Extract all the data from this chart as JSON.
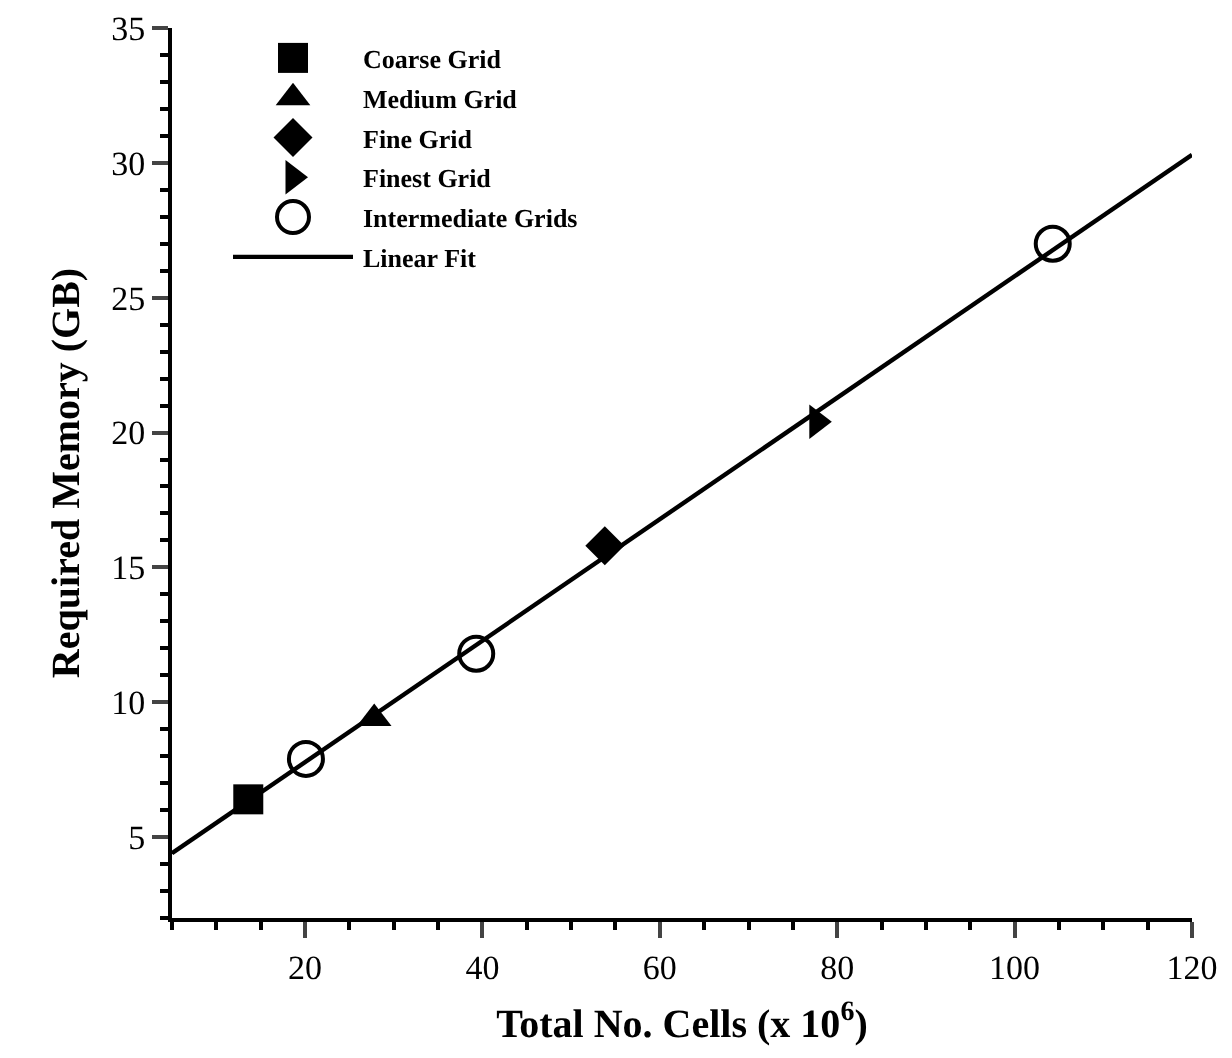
{
  "chart_data": {
    "type": "scatter",
    "xlabel": "Total No. Cells (x 10$^{6}$)",
    "ylabel": "Required Memory (GB)",
    "xlim": [
      5,
      120
    ],
    "xticks": [
      20,
      40,
      60,
      80,
      100,
      120
    ],
    "ylim": [
      2,
      35
    ],
    "yticks": [
      5,
      10,
      15,
      20,
      25,
      30,
      35
    ],
    "grid": false,
    "legend": "top left",
    "series": [
      {
        "name": "Coarse Grid",
        "color": "#000000",
        "marker": "square",
        "x": [
          13.6
        ],
        "values": [
          6.4
        ]
      },
      {
        "name": "Medium Grid",
        "color": "#000000",
        "marker": "triangle",
        "x": [
          27.8
        ],
        "values": [
          9.4
        ]
      },
      {
        "name": "Fine Grid",
        "color": "#000000",
        "marker": "diamond",
        "x": [
          53.8
        ],
        "values": [
          15.8
        ]
      },
      {
        "name": "Finest Grid",
        "color": "#000000",
        "marker": "triangle-right",
        "x": [
          77.7
        ],
        "values": [
          20.4
        ]
      },
      {
        "name": "Intermediate Grids",
        "color": "#000000",
        "marker": "circle-open",
        "x": [
          20.1,
          39.3,
          104.3
        ],
        "values": [
          7.9,
          11.8,
          27.0
        ]
      },
      {
        "name": "Linear Fit",
        "type": "line",
        "color": "#000000",
        "marker": "none",
        "line_style": "solid",
        "x": [
          5,
          120
        ],
        "values": [
          4.4,
          30.3
        ]
      }
    ]
  }
}
